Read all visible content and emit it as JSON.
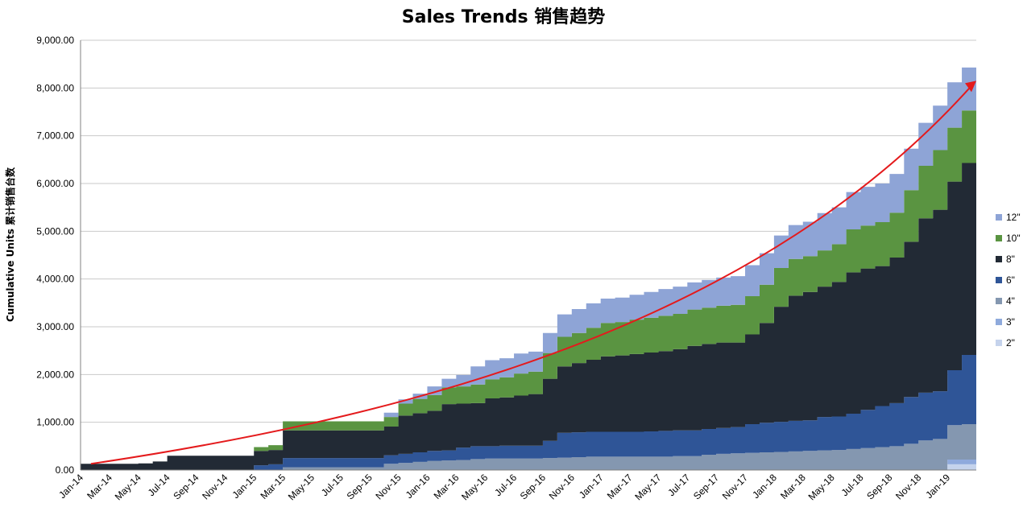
{
  "chart_data": {
    "type": "area",
    "stacked": true,
    "title": "Sales Trends 销售趋势",
    "xlabel": "",
    "ylabel": "Cumulative Units 累计销售台数",
    "ylim": [
      0,
      9000
    ],
    "yticks": [
      "0.00",
      "1,000.00",
      "2,000.00",
      "3,000.00",
      "4,000.00",
      "5,000.00",
      "6,000.00",
      "7,000.00",
      "8,000.00",
      "9,000.00"
    ],
    "grid": true,
    "legend_position": "right",
    "x": [
      "Jan-14",
      "Feb-14",
      "Mar-14",
      "Apr-14",
      "May-14",
      "Jun-14",
      "Jul-14",
      "Aug-14",
      "Sep-14",
      "Oct-14",
      "Nov-14",
      "Dec-14",
      "Jan-15",
      "Feb-15",
      "Mar-15",
      "Apr-15",
      "May-15",
      "Jun-15",
      "Jul-15",
      "Aug-15",
      "Sep-15",
      "Oct-15",
      "Nov-15",
      "Dec-15",
      "Jan-16",
      "Feb-16",
      "Mar-16",
      "Apr-16",
      "May-16",
      "Jun-16",
      "Jul-16",
      "Aug-16",
      "Sep-16",
      "Oct-16",
      "Nov-16",
      "Dec-16",
      "Jan-17",
      "Feb-17",
      "Mar-17",
      "Apr-17",
      "May-17",
      "Jun-17",
      "Jul-17",
      "Aug-17",
      "Sep-17",
      "Oct-17",
      "Nov-17",
      "Dec-17",
      "Jan-18",
      "Feb-18",
      "Mar-18",
      "Apr-18",
      "May-18",
      "Jun-18",
      "Jul-18",
      "Aug-18",
      "Sep-18",
      "Oct-18",
      "Nov-18",
      "Dec-18",
      "Jan-19",
      "Feb-19"
    ],
    "xtick_labels": [
      "Jan-14",
      "Mar-14",
      "May-14",
      "Jul-14",
      "Sep-14",
      "Nov-14",
      "Jan-15",
      "Mar-15",
      "May-15",
      "Jul-15",
      "Sep-15",
      "Nov-15",
      "Jan-16",
      "Mar-16",
      "May-16",
      "Jul-16",
      "Sep-16",
      "Nov-16",
      "Jan-17",
      "Mar-17",
      "May-17",
      "Jul-17",
      "Sep-17",
      "Nov-17",
      "Jan-18",
      "Mar-18",
      "May-18",
      "Jul-18",
      "Sep-18",
      "Nov-18",
      "Jan-19"
    ],
    "series": [
      {
        "name": "2\"",
        "color": "#c5d3ec",
        "values": [
          0,
          0,
          0,
          0,
          0,
          0,
          0,
          0,
          0,
          0,
          0,
          0,
          0,
          0,
          0,
          0,
          0,
          0,
          0,
          0,
          0,
          0,
          0,
          0,
          0,
          0,
          0,
          0,
          0,
          0,
          0,
          0,
          0,
          0,
          0,
          0,
          0,
          0,
          0,
          0,
          0,
          0,
          0,
          0,
          0,
          0,
          0,
          0,
          0,
          0,
          0,
          0,
          0,
          0,
          0,
          0,
          0,
          0,
          0,
          0,
          120,
          120
        ]
      },
      {
        "name": "3\"",
        "color": "#8faadc",
        "values": [
          0,
          0,
          0,
          0,
          0,
          0,
          0,
          0,
          0,
          0,
          0,
          0,
          0,
          0,
          0,
          0,
          0,
          0,
          0,
          0,
          0,
          0,
          0,
          0,
          0,
          0,
          0,
          0,
          0,
          0,
          0,
          0,
          0,
          0,
          0,
          0,
          0,
          0,
          0,
          0,
          0,
          0,
          0,
          0,
          0,
          0,
          0,
          0,
          0,
          0,
          0,
          0,
          0,
          0,
          0,
          0,
          0,
          0,
          0,
          0,
          100,
          100
        ]
      },
      {
        "name": "4\"",
        "color": "#8497b0",
        "values": [
          0,
          0,
          0,
          0,
          0,
          0,
          0,
          0,
          0,
          0,
          0,
          0,
          0,
          0,
          60,
          60,
          60,
          60,
          60,
          60,
          60,
          130,
          150,
          170,
          190,
          200,
          210,
          230,
          240,
          240,
          240,
          240,
          250,
          260,
          270,
          280,
          280,
          280,
          280,
          280,
          280,
          290,
          290,
          320,
          340,
          350,
          360,
          370,
          380,
          390,
          400,
          410,
          420,
          440,
          460,
          480,
          500,
          550,
          620,
          650,
          720,
          740
        ]
      },
      {
        "name": "6\"",
        "color": "#2f5597",
        "values": [
          0,
          0,
          0,
          0,
          0,
          0,
          0,
          0,
          0,
          0,
          0,
          0,
          100,
          120,
          190,
          190,
          190,
          190,
          190,
          190,
          190,
          180,
          190,
          200,
          210,
          210,
          260,
          270,
          260,
          270,
          270,
          270,
          360,
          520,
          520,
          520,
          520,
          520,
          520,
          530,
          540,
          540,
          540,
          540,
          540,
          550,
          600,
          620,
          630,
          640,
          640,
          700,
          700,
          740,
          800,
          860,
          900,
          980,
          1000,
          1000,
          1150,
          1450
        ]
      },
      {
        "name": "8\"",
        "color": "#222a35",
        "values": [
          130,
          130,
          130,
          130,
          140,
          180,
          300,
          300,
          300,
          300,
          300,
          300,
          300,
          300,
          580,
          580,
          580,
          580,
          580,
          580,
          580,
          600,
          800,
          820,
          840,
          970,
          920,
          900,
          1000,
          1010,
          1050,
          1080,
          1300,
          1390,
          1450,
          1510,
          1580,
          1600,
          1630,
          1650,
          1670,
          1700,
          1770,
          1780,
          1790,
          1770,
          1880,
          2090,
          2410,
          2620,
          2690,
          2730,
          2820,
          2960,
          2960,
          2930,
          3050,
          3250,
          3650,
          3800,
          3950,
          4020
        ]
      },
      {
        "name": "10\"",
        "color": "#5a9441",
        "values": [
          0,
          0,
          0,
          0,
          0,
          0,
          0,
          0,
          0,
          0,
          0,
          0,
          80,
          100,
          190,
          190,
          190,
          190,
          190,
          190,
          190,
          200,
          250,
          300,
          330,
          350,
          360,
          390,
          400,
          420,
          460,
          470,
          540,
          620,
          630,
          670,
          700,
          700,
          720,
          730,
          740,
          740,
          760,
          760,
          770,
          790,
          800,
          800,
          810,
          770,
          750,
          760,
          790,
          900,
          900,
          920,
          940,
          1080,
          1100,
          1250,
          1130,
          1100
        ]
      },
      {
        "name": "12\"",
        "color": "#8ea4d6",
        "values": [
          0,
          0,
          0,
          0,
          0,
          0,
          0,
          0,
          0,
          0,
          0,
          0,
          0,
          0,
          0,
          0,
          0,
          0,
          0,
          0,
          0,
          90,
          90,
          110,
          180,
          180,
          240,
          380,
          400,
          400,
          420,
          420,
          420,
          470,
          500,
          510,
          510,
          510,
          520,
          540,
          560,
          570,
          570,
          580,
          590,
          600,
          650,
          660,
          680,
          710,
          720,
          780,
          770,
          780,
          810,
          810,
          810,
          870,
          900,
          930,
          950,
          900
        ]
      }
    ],
    "trend_arrow": {
      "color": "#e41a1c",
      "description_visible": false
    }
  }
}
